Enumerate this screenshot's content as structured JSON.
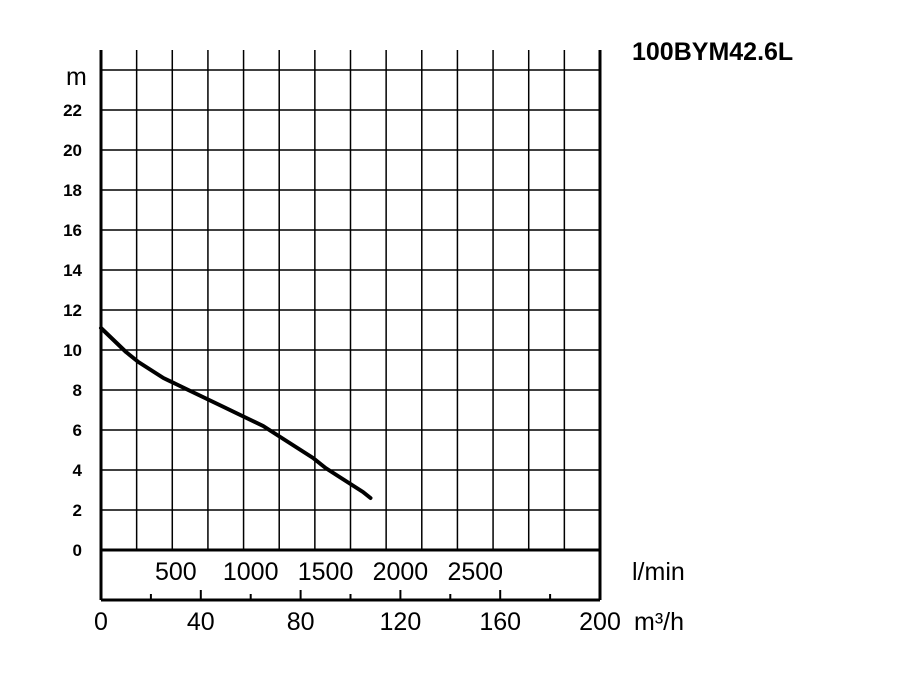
{
  "chart_data": {
    "type": "line",
    "title": "100BYM42.6L",
    "ylabel": "m",
    "xlabel_primary": "m³/h",
    "xlabel_secondary": "l/min",
    "ylim": [
      0,
      24
    ],
    "xlim": [
      0,
      200
    ],
    "grid": true,
    "y_ticks": [
      "0",
      "2",
      "4",
      "6",
      "8",
      "10",
      "12",
      "14",
      "16",
      "18",
      "20",
      "22"
    ],
    "x_ticks_m3h": [
      "0",
      "40",
      "80",
      "120",
      "160",
      "200"
    ],
    "x_ticks_lmin": [
      "500",
      "1000",
      "1500",
      "2000",
      "2500"
    ],
    "x_ticks_lmin_values": [
      500,
      1000,
      1500,
      2000,
      2500
    ],
    "series": [
      {
        "x": [
          0,
          5,
          10,
          15,
          20,
          25,
          30,
          35,
          40,
          45,
          50,
          55,
          60,
          65,
          70,
          75,
          80,
          85,
          90,
          95,
          100,
          105,
          108
        ],
        "y": [
          11.1,
          10.5,
          9.9,
          9.4,
          9.0,
          8.6,
          8.3,
          8.0,
          7.7,
          7.4,
          7.1,
          6.8,
          6.5,
          6.2,
          5.8,
          5.4,
          5.0,
          4.6,
          4.1,
          3.7,
          3.3,
          2.9,
          2.6
        ]
      }
    ]
  }
}
